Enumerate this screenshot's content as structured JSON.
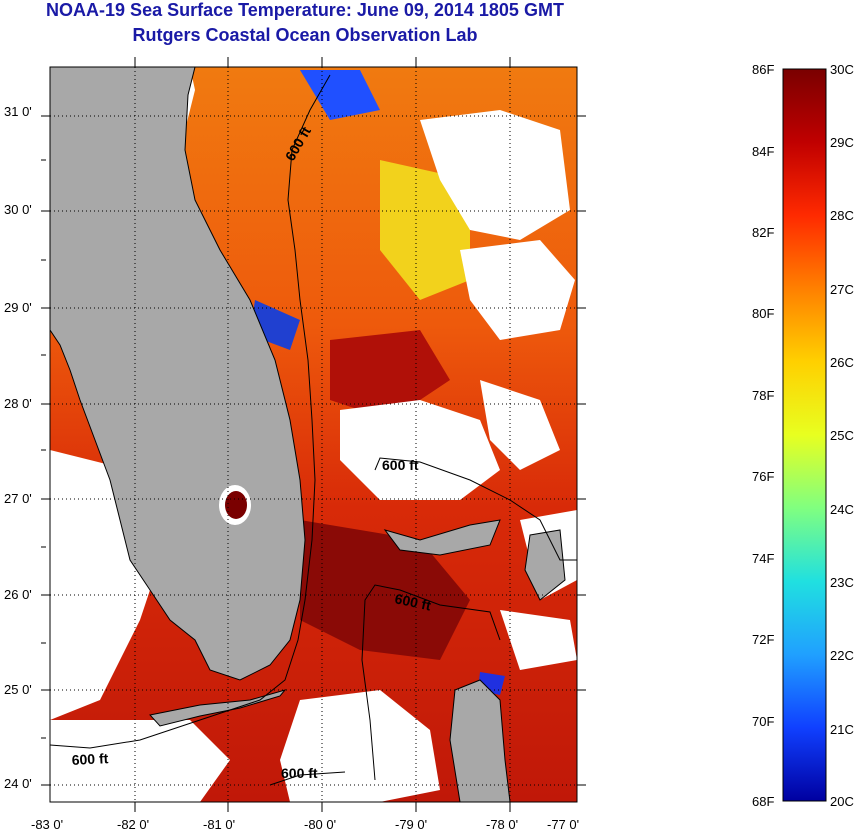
{
  "header": {
    "title": "NOAA-19 Sea Surface Temperature:  June 09, 2014 1805 GMT",
    "subtitle": "Rutgers Coastal Ocean Observation Lab"
  },
  "map": {
    "lon_labels": [
      "-83 0'",
      "-82 0'",
      "-81 0'",
      "-80 0'",
      "-79 0'",
      "-78 0'",
      "-77 0'"
    ],
    "lat_labels": [
      "31 0'",
      "30 0'",
      "29 0'",
      "28 0'",
      "27 0'",
      "26 0'",
      "25 0'",
      "24 0'"
    ],
    "contour_labels": [
      "600 ft",
      "600 ft",
      "600 ft",
      "600 ft",
      "600 ft"
    ],
    "colors": {
      "land": "#a8a8a8",
      "cloud": "#ffffff",
      "coast": "#000000"
    }
  },
  "colorbar": {
    "fahrenheit_labels": [
      "86F",
      "84F",
      "82F",
      "80F",
      "78F",
      "76F",
      "74F",
      "72F",
      "70F",
      "68F"
    ],
    "celsius_labels": [
      "30C",
      "29C",
      "28C",
      "27C",
      "26C",
      "25C",
      "24C",
      "23C",
      "22C",
      "21C",
      "20C"
    ],
    "gradient": [
      "#7a0000",
      "#c00000",
      "#ff2a00",
      "#ff8000",
      "#ffd000",
      "#e8ff20",
      "#80ff80",
      "#20e0e0",
      "#20a0ff",
      "#1040ff",
      "#0000a0"
    ]
  }
}
